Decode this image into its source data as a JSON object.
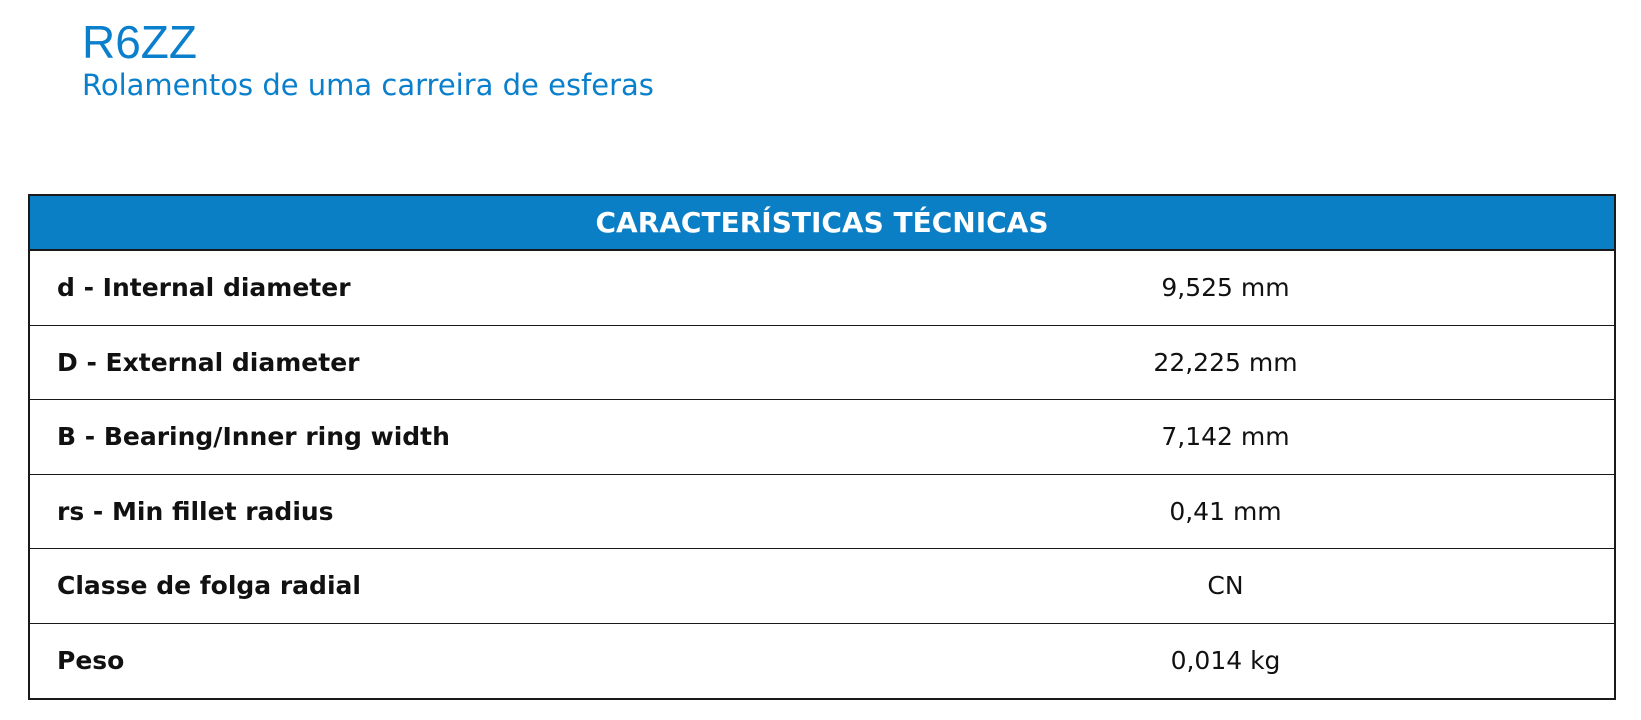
{
  "product": {
    "code": "R6ZZ",
    "description": "Rolamentos de uma carreira de esferas"
  },
  "specs": {
    "header": "CARACTERÍSTICAS TÉCNICAS",
    "rows": [
      {
        "label": "d - Internal diameter",
        "value": "9,525 mm"
      },
      {
        "label": "D - External diameter",
        "value": "22,225 mm"
      },
      {
        "label": "B - Bearing/Inner ring width",
        "value": "7,142 mm"
      },
      {
        "label": "rs - Min fillet radius",
        "value": "0,41 mm"
      },
      {
        "label": "Classe de folga radial",
        "value": "CN"
      },
      {
        "label": "Peso",
        "value": "0,014 kg"
      }
    ]
  },
  "colors": {
    "brand_blue": "#0a7fcb",
    "header_bg": "#0a7fc6",
    "border": "#1a1a1a"
  }
}
